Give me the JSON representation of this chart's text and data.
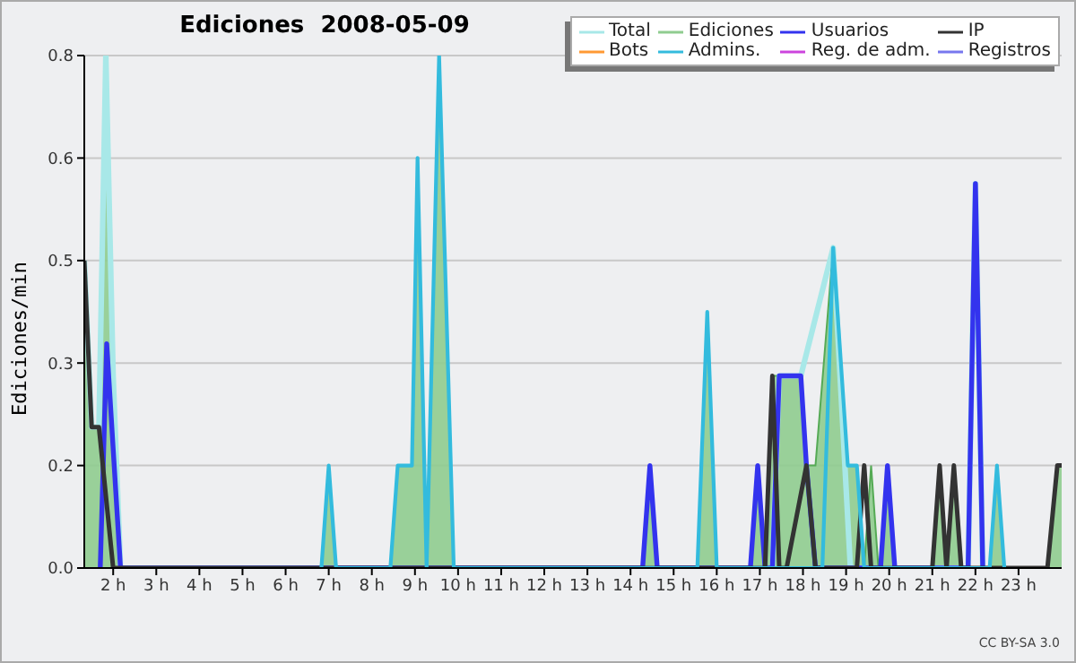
{
  "chart_data": {
    "type": "line",
    "title": "Ediciones  2008-05-09",
    "ylabel": "Ediciones/min",
    "annotations": [
      "CC BY-SA 3.0"
    ],
    "xlim": [
      1.33,
      24
    ],
    "xticks": [
      {
        "value": 2,
        "label": "2 h"
      },
      {
        "value": 3,
        "label": "3 h"
      },
      {
        "value": 4,
        "label": "4 h"
      },
      {
        "value": 5,
        "label": "5 h"
      },
      {
        "value": 6,
        "label": "6 h"
      },
      {
        "value": 7,
        "label": "7 h"
      },
      {
        "value": 8,
        "label": "8 h"
      },
      {
        "value": 9,
        "label": "9 h"
      },
      {
        "value": 10,
        "label": "10 h"
      },
      {
        "value": 11,
        "label": "11 h"
      },
      {
        "value": 12,
        "label": "12 h"
      },
      {
        "value": 13,
        "label": "13 h"
      },
      {
        "value": 14,
        "label": "14 h"
      },
      {
        "value": 15,
        "label": "15 h"
      },
      {
        "value": 16,
        "label": "16 h"
      },
      {
        "value": 17,
        "label": "17 h"
      },
      {
        "value": 18,
        "label": "18 h"
      },
      {
        "value": 19,
        "label": "19 h"
      },
      {
        "value": 20,
        "label": "20 h"
      },
      {
        "value": 21,
        "label": "21 h"
      },
      {
        "value": 22,
        "label": "22 h"
      },
      {
        "value": 23,
        "label": "23 h"
      }
    ],
    "ylim": [
      0,
      0.8
    ],
    "yticks": [
      {
        "value": 0,
        "label": "0.0"
      },
      {
        "value": 0.16,
        "label": "0.2"
      },
      {
        "value": 0.32,
        "label": "0.3"
      },
      {
        "value": 0.48,
        "label": "0.5"
      },
      {
        "value": 0.64,
        "label": "0.6"
      },
      {
        "value": 0.8,
        "label": "0.8"
      }
    ],
    "grid": "y",
    "legend": "top right",
    "series": [
      {
        "name": "Total",
        "color": "#a8e8e8",
        "x": [
          1.33,
          1.5,
          1.67,
          1.83,
          2.0,
          2.17,
          17.29,
          17.45,
          17.95,
          18.7,
          19.1,
          21.83,
          22.0,
          22.17
        ],
        "values": [
          0.48,
          0.22,
          0.22,
          0.8,
          0.3,
          0,
          0,
          0.3,
          0.3,
          0.5,
          0,
          0,
          0.6,
          0
        ]
      },
      {
        "name": "Ediciones",
        "type": "area",
        "color": "#8fcc8f",
        "x": [
          1.33,
          1.5,
          1.67,
          1.83,
          2.0,
          2.17,
          6.83,
          7.0,
          7.17,
          8.43,
          8.6,
          8.93,
          9.06,
          9.27,
          9.56,
          9.9,
          14.28,
          14.45,
          14.62,
          15.55,
          15.78,
          16.0,
          16.78,
          16.95,
          17.12,
          17.29,
          17.45,
          17.95,
          18.08,
          18.29,
          18.7,
          19.04,
          19.25,
          19.42,
          19.58,
          19.75,
          19.8,
          19.96,
          20.13,
          21.0,
          21.17,
          21.33,
          21.5,
          21.67,
          22.33,
          22.5,
          22.67,
          23.67,
          23.9,
          24
        ],
        "values": [
          0.48,
          0.22,
          0.22,
          0.8,
          0.3,
          0,
          0,
          0.16,
          0,
          0,
          0.16,
          0.16,
          0.64,
          0,
          0.8,
          0,
          0,
          0.16,
          0,
          0,
          0.4,
          0,
          0,
          0.16,
          0,
          0.3,
          0.3,
          0.3,
          0.16,
          0.16,
          0.5,
          0.16,
          0.16,
          0,
          0.16,
          0,
          0,
          0.16,
          0,
          0,
          0.16,
          0,
          0.16,
          0,
          0,
          0.16,
          0,
          0,
          0.16,
          0.16
        ]
      },
      {
        "name": "Usuarios",
        "color": "#3333ee",
        "x": [
          1.7,
          1.85,
          2.17,
          14.28,
          14.45,
          14.62,
          16.78,
          16.95,
          17.12,
          17.29,
          17.45,
          17.95,
          18.08,
          18.29,
          19.8,
          19.96,
          20.13,
          21.83,
          22.0,
          22.17
        ],
        "values": [
          0,
          0.35,
          0,
          0,
          0.16,
          0,
          0,
          0.16,
          0,
          0,
          0.3,
          0.3,
          0.16,
          0,
          0,
          0.16,
          0,
          0,
          0.6,
          0
        ]
      },
      {
        "name": "IP",
        "color": "#333333",
        "x": [
          1.33,
          1.5,
          1.67,
          2.0,
          17.12,
          17.29,
          17.45,
          17.62,
          18.08,
          18.29,
          18.45,
          19.25,
          19.42,
          19.58,
          20.9,
          21.0,
          21.17,
          21.33,
          21.5,
          21.67,
          23.67,
          23.9,
          24
        ],
        "values": [
          0.48,
          0.22,
          0.22,
          0,
          0,
          0.3,
          0,
          0,
          0.16,
          0,
          0,
          0,
          0.16,
          0,
          0,
          0,
          0.16,
          0,
          0.16,
          0,
          0,
          0.16,
          0.16
        ]
      },
      {
        "name": "Bots",
        "color": "#ff9933"
      },
      {
        "name": "Admins.",
        "color": "#33bbdd",
        "x": [
          6.83,
          7.0,
          7.17,
          8.43,
          8.6,
          8.93,
          9.06,
          9.27,
          9.56,
          9.9,
          15.55,
          15.78,
          16.0,
          18.45,
          18.7,
          19.04,
          19.25,
          19.42,
          22.33,
          22.5,
          22.67
        ],
        "values": [
          0,
          0.16,
          0,
          0,
          0.16,
          0.16,
          0.64,
          0,
          0.8,
          0,
          0,
          0.4,
          0,
          0,
          0.5,
          0.16,
          0.16,
          0,
          0,
          0.16,
          0
        ]
      },
      {
        "name": "Reg. de adm.",
        "color": "#cc44dd"
      },
      {
        "name": "Registros",
        "color": "#7777ee"
      }
    ]
  }
}
